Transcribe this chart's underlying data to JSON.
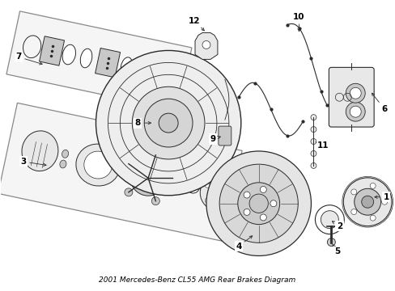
{
  "title": "2001 Mercedes-Benz CL55 AMG Rear Brakes Diagram",
  "background_color": "#ffffff",
  "line_color": "#2a2a2a",
  "label_color": "#000000",
  "fig_width": 4.89,
  "fig_height": 3.6,
  "dpi": 100,
  "lw": 0.7,
  "gray_fill": "#e8e8e8",
  "mid_gray": "#c8c8c8",
  "dark_gray": "#aaaaaa"
}
